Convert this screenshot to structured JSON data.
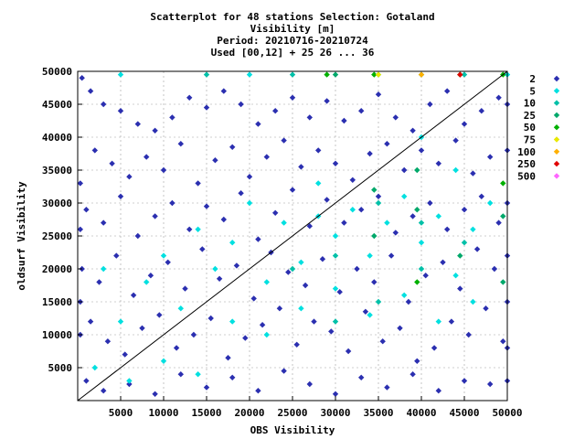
{
  "chart_data": {
    "type": "scatter",
    "title_lines": [
      "Scatterplot for   48 stations Selection: Gotaland",
      "Visibility [m]",
      "Period: 20210716-20210724",
      "Used [00,12] + 25 26 ... 36"
    ],
    "xlabel": "OBS Visibility",
    "ylabel": "oldsurf Visibility",
    "xlim": [
      0,
      50000
    ],
    "ylim": [
      0,
      50000
    ],
    "x_ticks": [
      5000,
      10000,
      15000,
      20000,
      25000,
      30000,
      35000,
      40000,
      45000,
      50000
    ],
    "y_ticks": [
      5000,
      10000,
      15000,
      20000,
      25000,
      30000,
      35000,
      40000,
      45000,
      50000
    ],
    "grid": true,
    "diagonal": true,
    "legend_position": "right",
    "legend": [
      {
        "label": "2",
        "color": "#2b2fb0"
      },
      {
        "label": "5",
        "color": "#00e0e0"
      },
      {
        "label": "10",
        "color": "#00c0a8"
      },
      {
        "label": "25",
        "color": "#00a86a"
      },
      {
        "label": "50",
        "color": "#00b000"
      },
      {
        "label": "75",
        "color": "#e8e800"
      },
      {
        "label": "100",
        "color": "#ffb000"
      },
      {
        "label": "250",
        "color": "#e00000"
      },
      {
        "label": "500",
        "color": "#ff66ff"
      }
    ],
    "series": [
      {
        "name": "2",
        "points": [
          [
            500,
            49000
          ],
          [
            1500,
            47000
          ],
          [
            3000,
            45000
          ],
          [
            5000,
            44000
          ],
          [
            7000,
            42000
          ],
          [
            9000,
            41000
          ],
          [
            11000,
            43000
          ],
          [
            13000,
            46000
          ],
          [
            15000,
            44500
          ],
          [
            17000,
            47000
          ],
          [
            19000,
            45000
          ],
          [
            21000,
            42000
          ],
          [
            23000,
            44000
          ],
          [
            25000,
            46000
          ],
          [
            27000,
            43000
          ],
          [
            29000,
            45500
          ],
          [
            31000,
            42500
          ],
          [
            33000,
            44000
          ],
          [
            35000,
            46500
          ],
          [
            37000,
            43000
          ],
          [
            39000,
            41000
          ],
          [
            41000,
            45000
          ],
          [
            43000,
            47000
          ],
          [
            45000,
            42000
          ],
          [
            47000,
            44000
          ],
          [
            49000,
            46000
          ],
          [
            2000,
            38000
          ],
          [
            4000,
            36000
          ],
          [
            6000,
            34000
          ],
          [
            8000,
            37000
          ],
          [
            10000,
            35000
          ],
          [
            12000,
            39000
          ],
          [
            14000,
            33000
          ],
          [
            16000,
            36500
          ],
          [
            18000,
            38500
          ],
          [
            20000,
            34000
          ],
          [
            22000,
            37000
          ],
          [
            24000,
            39500
          ],
          [
            26000,
            35500
          ],
          [
            28000,
            38000
          ],
          [
            30000,
            36000
          ],
          [
            32000,
            33500
          ],
          [
            34000,
            37500
          ],
          [
            36000,
            39000
          ],
          [
            38000,
            35000
          ],
          [
            40000,
            38000
          ],
          [
            42000,
            36000
          ],
          [
            44000,
            39500
          ],
          [
            46000,
            34500
          ],
          [
            48000,
            37000
          ],
          [
            1000,
            29000
          ],
          [
            3000,
            27000
          ],
          [
            5000,
            31000
          ],
          [
            7000,
            25000
          ],
          [
            9000,
            28000
          ],
          [
            11000,
            30000
          ],
          [
            13000,
            26000
          ],
          [
            15000,
            29500
          ],
          [
            17000,
            27500
          ],
          [
            19000,
            31500
          ],
          [
            21000,
            24500
          ],
          [
            23000,
            28500
          ],
          [
            25000,
            32000
          ],
          [
            27000,
            26500
          ],
          [
            29000,
            30500
          ],
          [
            31000,
            27000
          ],
          [
            33000,
            29000
          ],
          [
            35000,
            31000
          ],
          [
            37000,
            25500
          ],
          [
            39000,
            28000
          ],
          [
            41000,
            30000
          ],
          [
            43000,
            26000
          ],
          [
            45000,
            29000
          ],
          [
            47000,
            31000
          ],
          [
            49000,
            27000
          ],
          [
            500,
            20000
          ],
          [
            2500,
            18000
          ],
          [
            4500,
            22000
          ],
          [
            6500,
            16000
          ],
          [
            8500,
            19000
          ],
          [
            10500,
            21000
          ],
          [
            12500,
            17000
          ],
          [
            14500,
            23000
          ],
          [
            16500,
            18500
          ],
          [
            18500,
            20500
          ],
          [
            20500,
            15500
          ],
          [
            22500,
            22500
          ],
          [
            24500,
            19500
          ],
          [
            26500,
            17500
          ],
          [
            28500,
            21500
          ],
          [
            30500,
            16500
          ],
          [
            32500,
            20000
          ],
          [
            34500,
            18000
          ],
          [
            36500,
            22000
          ],
          [
            38500,
            15000
          ],
          [
            40500,
            19000
          ],
          [
            42500,
            21000
          ],
          [
            44500,
            17000
          ],
          [
            46500,
            23000
          ],
          [
            48500,
            20000
          ],
          [
            1500,
            12000
          ],
          [
            3500,
            9000
          ],
          [
            5500,
            7000
          ],
          [
            7500,
            11000
          ],
          [
            9500,
            13000
          ],
          [
            11500,
            8000
          ],
          [
            13500,
            10000
          ],
          [
            15500,
            12500
          ],
          [
            17500,
            6500
          ],
          [
            19500,
            9500
          ],
          [
            21500,
            11500
          ],
          [
            23500,
            14000
          ],
          [
            25500,
            8500
          ],
          [
            27500,
            12000
          ],
          [
            29500,
            10500
          ],
          [
            31500,
            7500
          ],
          [
            33500,
            13500
          ],
          [
            35500,
            9000
          ],
          [
            37500,
            11000
          ],
          [
            39500,
            6000
          ],
          [
            41500,
            8000
          ],
          [
            43500,
            12000
          ],
          [
            45500,
            10000
          ],
          [
            47500,
            14000
          ],
          [
            49500,
            9000
          ],
          [
            1000,
            3000
          ],
          [
            3000,
            1500
          ],
          [
            6000,
            2500
          ],
          [
            9000,
            1000
          ],
          [
            12000,
            4000
          ],
          [
            15000,
            2000
          ],
          [
            18000,
            3500
          ],
          [
            21000,
            1500
          ],
          [
            24000,
            4500
          ],
          [
            27000,
            2500
          ],
          [
            30000,
            1000
          ],
          [
            33000,
            3500
          ],
          [
            36000,
            2000
          ],
          [
            39000,
            4000
          ],
          [
            42000,
            1500
          ],
          [
            45000,
            3000
          ],
          [
            48000,
            2500
          ],
          [
            50000,
            45000
          ],
          [
            50000,
            38000
          ],
          [
            50000,
            30000
          ],
          [
            50000,
            22000
          ],
          [
            50000,
            15000
          ],
          [
            50000,
            8000
          ],
          [
            50000,
            3000
          ],
          [
            300,
            33000
          ],
          [
            300,
            26000
          ],
          [
            300,
            15000
          ],
          [
            300,
            10000
          ]
        ]
      },
      {
        "name": "5",
        "points": [
          [
            3000,
            20000
          ],
          [
            5000,
            12000
          ],
          [
            8000,
            18000
          ],
          [
            10000,
            22000
          ],
          [
            12000,
            14000
          ],
          [
            14000,
            26000
          ],
          [
            16000,
            20000
          ],
          [
            18000,
            24000
          ],
          [
            20000,
            30000
          ],
          [
            22000,
            18000
          ],
          [
            24000,
            27000
          ],
          [
            26000,
            21000
          ],
          [
            28000,
            33000
          ],
          [
            30000,
            25000
          ],
          [
            32000,
            29000
          ],
          [
            34000,
            22000
          ],
          [
            36000,
            27000
          ],
          [
            38000,
            31000
          ],
          [
            40000,
            24000
          ],
          [
            42000,
            28000
          ],
          [
            44000,
            19000
          ],
          [
            46000,
            26000
          ],
          [
            48000,
            30000
          ],
          [
            18000,
            12000
          ],
          [
            22000,
            10000
          ],
          [
            26000,
            14000
          ],
          [
            30000,
            17000
          ],
          [
            34000,
            13000
          ],
          [
            38000,
            16000
          ],
          [
            42000,
            12000
          ],
          [
            46000,
            15000
          ],
          [
            2000,
            5000
          ],
          [
            6000,
            3000
          ],
          [
            10000,
            6000
          ],
          [
            14000,
            4000
          ],
          [
            50000,
            49500
          ],
          [
            35000,
            49500
          ],
          [
            20000,
            49500
          ],
          [
            5000,
            49500
          ],
          [
            40000,
            40000
          ],
          [
            44000,
            35000
          ],
          [
            28000,
            28000
          ]
        ]
      },
      {
        "name": "10",
        "points": [
          [
            25000,
            20000
          ],
          [
            30000,
            22000
          ],
          [
            35000,
            30000
          ],
          [
            40000,
            27000
          ],
          [
            45000,
            24000
          ],
          [
            35000,
            15000
          ],
          [
            40000,
            20000
          ],
          [
            30000,
            12000
          ],
          [
            25000,
            49500
          ],
          [
            45000,
            49500
          ],
          [
            15000,
            49500
          ]
        ]
      },
      {
        "name": "25",
        "points": [
          [
            34500,
            32000
          ],
          [
            34500,
            25000
          ],
          [
            39500,
            35000
          ],
          [
            39500,
            29000
          ],
          [
            44500,
            22000
          ],
          [
            49500,
            28000
          ],
          [
            49500,
            18000
          ],
          [
            30000,
            49500
          ],
          [
            40000,
            49500
          ]
        ]
      },
      {
        "name": "50",
        "points": [
          [
            39500,
            18000
          ],
          [
            49500,
            49500
          ],
          [
            34500,
            49500
          ],
          [
            44500,
            49500
          ],
          [
            29000,
            49500
          ],
          [
            49500,
            33000
          ]
        ]
      },
      {
        "name": "75",
        "points": [
          [
            35000,
            49500
          ]
        ]
      },
      {
        "name": "100",
        "points": [
          [
            40000,
            49500
          ]
        ]
      },
      {
        "name": "250",
        "points": [
          [
            44500,
            49500
          ]
        ]
      }
    ]
  }
}
